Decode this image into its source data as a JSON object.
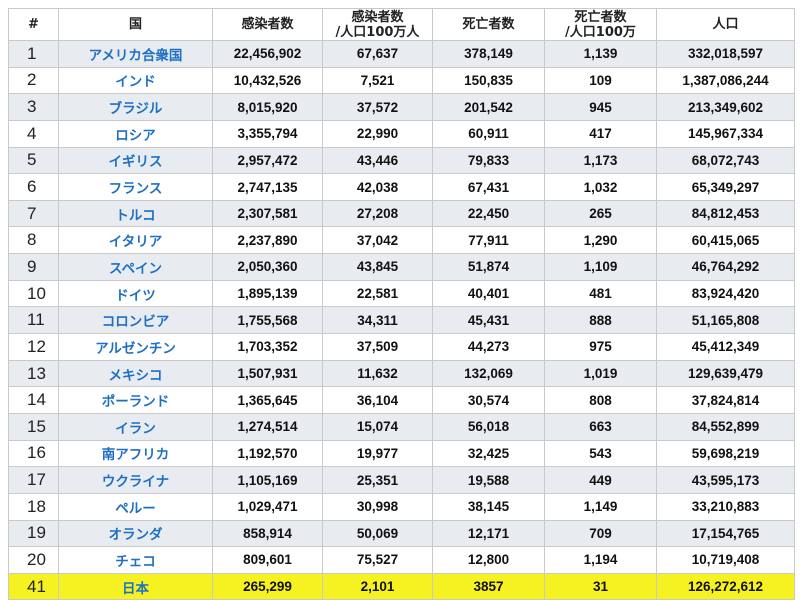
{
  "headers": {
    "rank": "#",
    "country": "国",
    "cases": "感染者数",
    "cases_pm_line1": "感染者数",
    "cases_pm_line2": "/人口100万人",
    "deaths": "死亡者数",
    "deaths_pm_line1": "死亡者数",
    "deaths_pm_line2": "/人口100万",
    "population": "人口"
  },
  "colors": {
    "country_text": "#1d6fc4",
    "stripe": "#e8ecf1",
    "highlight": "#f6f221",
    "border": "#c9c9c9"
  },
  "rows": [
    {
      "rank": "1",
      "country": "アメリカ合衆国",
      "cases": "22,456,902",
      "cases_pm": "67,637",
      "deaths": "378,149",
      "deaths_pm": "1,139",
      "population": "332,018,597"
    },
    {
      "rank": "2",
      "country": "インド",
      "cases": "10,432,526",
      "cases_pm": "7,521",
      "deaths": "150,835",
      "deaths_pm": "109",
      "population": "1,387,086,244"
    },
    {
      "rank": "3",
      "country": "ブラジル",
      "cases": "8,015,920",
      "cases_pm": "37,572",
      "deaths": "201,542",
      "deaths_pm": "945",
      "population": "213,349,602"
    },
    {
      "rank": "4",
      "country": "ロシア",
      "cases": "3,355,794",
      "cases_pm": "22,990",
      "deaths": "60,911",
      "deaths_pm": "417",
      "population": "145,967,334"
    },
    {
      "rank": "5",
      "country": "イギリス",
      "cases": "2,957,472",
      "cases_pm": "43,446",
      "deaths": "79,833",
      "deaths_pm": "1,173",
      "population": "68,072,743"
    },
    {
      "rank": "6",
      "country": "フランス",
      "cases": "2,747,135",
      "cases_pm": "42,038",
      "deaths": "67,431",
      "deaths_pm": "1,032",
      "population": "65,349,297"
    },
    {
      "rank": "7",
      "country": "トルコ",
      "cases": "2,307,581",
      "cases_pm": "27,208",
      "deaths": "22,450",
      "deaths_pm": "265",
      "population": "84,812,453"
    },
    {
      "rank": "8",
      "country": "イタリア",
      "cases": "2,237,890",
      "cases_pm": "37,042",
      "deaths": "77,911",
      "deaths_pm": "1,290",
      "population": "60,415,065"
    },
    {
      "rank": "9",
      "country": "スペイン",
      "cases": "2,050,360",
      "cases_pm": "43,845",
      "deaths": "51,874",
      "deaths_pm": "1,109",
      "population": "46,764,292"
    },
    {
      "rank": "10",
      "country": "ドイツ",
      "cases": "1,895,139",
      "cases_pm": "22,581",
      "deaths": "40,401",
      "deaths_pm": "481",
      "population": "83,924,420"
    },
    {
      "rank": "11",
      "country": "コロンビア",
      "cases": "1,755,568",
      "cases_pm": "34,311",
      "deaths": "45,431",
      "deaths_pm": "888",
      "population": "51,165,808"
    },
    {
      "rank": "12",
      "country": "アルゼンチン",
      "cases": "1,703,352",
      "cases_pm": "37,509",
      "deaths": "44,273",
      "deaths_pm": "975",
      "population": "45,412,349"
    },
    {
      "rank": "13",
      "country": "メキシコ",
      "cases": "1,507,931",
      "cases_pm": "11,632",
      "deaths": "132,069",
      "deaths_pm": "1,019",
      "population": "129,639,479"
    },
    {
      "rank": "14",
      "country": "ポーランド",
      "cases": "1,365,645",
      "cases_pm": "36,104",
      "deaths": "30,574",
      "deaths_pm": "808",
      "population": "37,824,814"
    },
    {
      "rank": "15",
      "country": "イラン",
      "cases": "1,274,514",
      "cases_pm": "15,074",
      "deaths": "56,018",
      "deaths_pm": "663",
      "population": "84,552,899"
    },
    {
      "rank": "16",
      "country": "南アフリカ",
      "cases": "1,192,570",
      "cases_pm": "19,977",
      "deaths": "32,425",
      "deaths_pm": "543",
      "population": "59,698,219"
    },
    {
      "rank": "17",
      "country": "ウクライナ",
      "cases": "1,105,169",
      "cases_pm": "25,351",
      "deaths": "19,588",
      "deaths_pm": "449",
      "population": "43,595,173"
    },
    {
      "rank": "18",
      "country": "ペルー",
      "cases": "1,029,471",
      "cases_pm": "30,998",
      "deaths": "38,145",
      "deaths_pm": "1,149",
      "population": "33,210,883"
    },
    {
      "rank": "19",
      "country": "オランダ",
      "cases": "858,914",
      "cases_pm": "50,069",
      "deaths": "12,171",
      "deaths_pm": "709",
      "population": "17,154,765"
    },
    {
      "rank": "20",
      "country": "チェコ",
      "cases": "809,601",
      "cases_pm": "75,527",
      "deaths": "12,800",
      "deaths_pm": "1,194",
      "population": "10,719,408"
    },
    {
      "rank": "41",
      "country": "日本",
      "cases": "265,299",
      "cases_pm": "2,101",
      "deaths": "3857",
      "deaths_pm": "31",
      "population": "126,272,612",
      "highlight": true
    }
  ]
}
